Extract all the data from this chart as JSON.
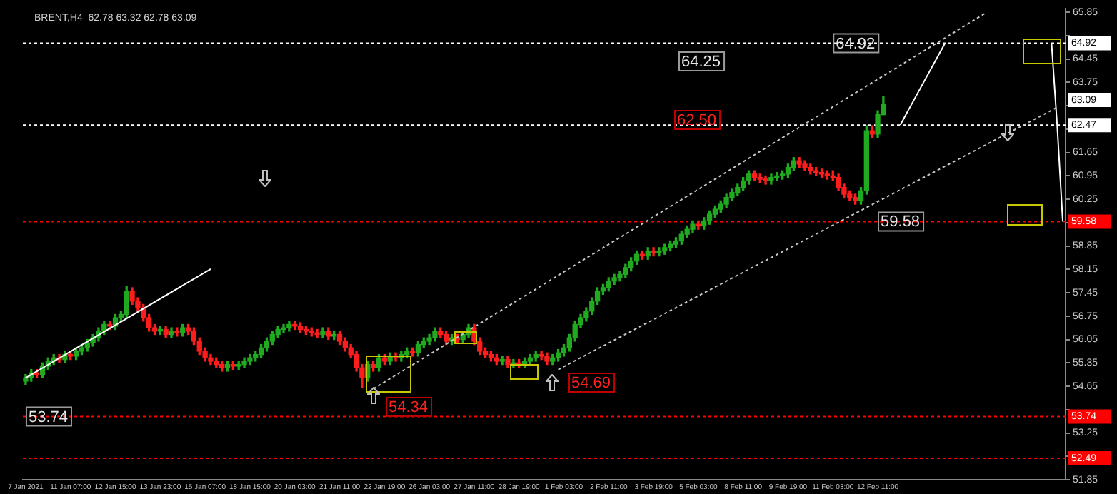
{
  "chart_data": {
    "type": "candlestick",
    "title": "BRENT,H4  62.78 63.32 62.78 63.09",
    "categories": [
      "7 Jan 2021",
      null,
      null,
      null,
      null,
      null,
      null,
      null,
      "11 Jan 07:00",
      null,
      null,
      null,
      null,
      null,
      null,
      null,
      "12 Jan 15:00",
      null,
      null,
      null,
      null,
      null,
      null,
      null,
      "13 Jan 23:00",
      null,
      null,
      null,
      null,
      null,
      null,
      null,
      "15 Jan 07:00",
      null,
      null,
      null,
      null,
      null,
      null,
      null,
      "18 Jan 15:00",
      null,
      null,
      null,
      null,
      null,
      null,
      null,
      "20 Jan 03:00",
      null,
      null,
      null,
      null,
      null,
      null,
      null,
      "21 Jan 11:00",
      null,
      null,
      null,
      null,
      null,
      null,
      null,
      "22 Jan 19:00",
      null,
      null,
      null,
      null,
      null,
      null,
      null,
      "26 Jan 03:00",
      null,
      null,
      null,
      null,
      null,
      null,
      null,
      "27 Jan 11:00",
      null,
      null,
      null,
      null,
      null,
      null,
      null,
      "28 Jan 19:00",
      null,
      null,
      null,
      null,
      null,
      null,
      null,
      "1 Feb 03:00",
      null,
      null,
      null,
      null,
      null,
      null,
      null,
      "2 Feb 11:00",
      null,
      null,
      null,
      null,
      null,
      null,
      null,
      "3 Feb 19:00",
      null,
      null,
      null,
      null,
      null,
      null,
      null,
      "5 Feb 03:00",
      null,
      null,
      null,
      null,
      null,
      null,
      null,
      "8 Feb 11:00",
      null,
      null,
      null,
      null,
      null,
      null,
      null,
      "9 Feb 19:00",
      null,
      null,
      null,
      null,
      null,
      null,
      null,
      "11 Feb 03:00",
      null,
      null,
      null,
      null,
      null,
      null,
      null,
      "12 Feb 11:00",
      null,
      null,
      null,
      null,
      null,
      null,
      null,
      null,
      null,
      null,
      null,
      null,
      null,
      null,
      null,
      null,
      null,
      null,
      null,
      null,
      null,
      null,
      null,
      null,
      null,
      null,
      null,
      null,
      null,
      null,
      null,
      null,
      null
    ],
    "ohlc": [
      [
        54.8,
        55.0,
        54.7,
        54.9
      ],
      [
        54.9,
        55.15,
        54.8,
        55.05
      ],
      [
        55.05,
        55.15,
        54.9,
        55.0
      ],
      [
        55.0,
        55.35,
        54.9,
        55.25
      ],
      [
        55.25,
        55.5,
        55.15,
        55.4
      ],
      [
        55.4,
        55.6,
        55.3,
        55.5
      ],
      [
        55.5,
        55.6,
        55.35,
        55.45
      ],
      [
        55.45,
        55.7,
        55.35,
        55.6
      ],
      [
        55.6,
        55.7,
        55.45,
        55.55
      ],
      [
        55.55,
        55.8,
        55.45,
        55.7
      ],
      [
        55.7,
        55.9,
        55.6,
        55.8
      ],
      [
        55.8,
        56.05,
        55.7,
        55.95
      ],
      [
        55.95,
        56.2,
        55.85,
        56.1
      ],
      [
        56.1,
        56.4,
        56.0,
        56.3
      ],
      [
        56.3,
        56.6,
        56.2,
        56.5
      ],
      [
        56.5,
        56.6,
        56.35,
        56.45
      ],
      [
        56.45,
        56.8,
        56.35,
        56.7
      ],
      [
        56.7,
        56.9,
        56.6,
        56.8
      ],
      [
        56.8,
        57.65,
        56.7,
        57.5
      ],
      [
        57.5,
        57.6,
        57.1,
        57.2
      ],
      [
        57.2,
        57.3,
        56.9,
        57.0
      ],
      [
        57.0,
        57.1,
        56.6,
        56.7
      ],
      [
        56.7,
        56.8,
        56.3,
        56.4
      ],
      [
        56.4,
        56.5,
        56.2,
        56.3
      ],
      [
        56.3,
        56.45,
        56.2,
        56.35
      ],
      [
        56.35,
        56.45,
        56.1,
        56.2
      ],
      [
        56.2,
        56.4,
        56.1,
        56.3
      ],
      [
        56.3,
        56.4,
        56.15,
        56.25
      ],
      [
        56.25,
        56.5,
        56.15,
        56.4
      ],
      [
        56.4,
        56.5,
        56.2,
        56.3
      ],
      [
        56.3,
        56.4,
        55.9,
        56.0
      ],
      [
        56.0,
        56.1,
        55.6,
        55.7
      ],
      [
        55.7,
        55.8,
        55.4,
        55.5
      ],
      [
        55.5,
        55.6,
        55.3,
        55.4
      ],
      [
        55.4,
        55.5,
        55.2,
        55.3
      ],
      [
        55.3,
        55.4,
        55.1,
        55.2
      ],
      [
        55.2,
        55.4,
        55.1,
        55.3
      ],
      [
        55.3,
        55.4,
        55.15,
        55.25
      ],
      [
        55.25,
        55.4,
        55.15,
        55.3
      ],
      [
        55.3,
        55.5,
        55.2,
        55.4
      ],
      [
        55.4,
        55.6,
        55.3,
        55.5
      ],
      [
        55.5,
        55.7,
        55.4,
        55.6
      ],
      [
        55.6,
        55.9,
        55.5,
        55.8
      ],
      [
        55.8,
        56.1,
        55.7,
        56.0
      ],
      [
        56.0,
        56.3,
        55.9,
        56.2
      ],
      [
        56.2,
        56.45,
        56.1,
        56.35
      ],
      [
        56.35,
        56.5,
        56.25,
        56.4
      ],
      [
        56.4,
        56.6,
        56.3,
        56.5
      ],
      [
        56.5,
        56.6,
        56.35,
        56.45
      ],
      [
        56.45,
        56.55,
        56.25,
        56.35
      ],
      [
        56.35,
        56.45,
        56.2,
        56.3
      ],
      [
        56.3,
        56.4,
        56.15,
        56.25
      ],
      [
        56.25,
        56.35,
        56.1,
        56.2
      ],
      [
        56.2,
        56.4,
        56.1,
        56.3
      ],
      [
        56.3,
        56.4,
        56.05,
        56.15
      ],
      [
        56.15,
        56.3,
        56.05,
        56.2
      ],
      [
        56.2,
        56.3,
        55.9,
        56.0
      ],
      [
        56.0,
        56.1,
        55.7,
        55.8
      ],
      [
        55.8,
        55.9,
        55.5,
        55.6
      ],
      [
        55.6,
        55.7,
        55.1,
        55.2
      ],
      [
        55.2,
        55.3,
        54.6,
        54.9
      ],
      [
        54.9,
        55.4,
        54.8,
        55.3
      ],
      [
        55.3,
        55.4,
        55.1,
        55.2
      ],
      [
        55.2,
        55.6,
        55.1,
        55.5
      ],
      [
        55.5,
        55.6,
        55.3,
        55.4
      ],
      [
        55.4,
        55.65,
        55.3,
        55.55
      ],
      [
        55.55,
        55.65,
        55.4,
        55.5
      ],
      [
        55.5,
        55.7,
        55.4,
        55.6
      ],
      [
        55.6,
        55.8,
        55.5,
        55.7
      ],
      [
        55.7,
        55.8,
        55.55,
        55.65
      ],
      [
        55.65,
        56.0,
        55.55,
        55.9
      ],
      [
        55.9,
        56.1,
        55.8,
        56.0
      ],
      [
        56.0,
        56.2,
        55.9,
        56.1
      ],
      [
        56.1,
        56.4,
        56.0,
        56.3
      ],
      [
        56.3,
        56.4,
        56.1,
        56.2
      ],
      [
        56.2,
        56.3,
        55.9,
        56.0
      ],
      [
        56.0,
        56.2,
        55.9,
        56.1
      ],
      [
        56.1,
        56.2,
        55.95,
        56.05
      ],
      [
        56.05,
        56.3,
        55.95,
        56.2
      ],
      [
        56.2,
        56.5,
        56.1,
        56.4
      ],
      [
        56.4,
        56.5,
        55.9,
        56.0
      ],
      [
        56.0,
        56.1,
        55.6,
        55.7
      ],
      [
        55.7,
        55.8,
        55.5,
        55.6
      ],
      [
        55.6,
        55.7,
        55.4,
        55.5
      ],
      [
        55.5,
        55.6,
        55.3,
        55.4
      ],
      [
        55.4,
        55.55,
        55.3,
        55.45
      ],
      [
        55.45,
        55.55,
        55.2,
        55.3
      ],
      [
        55.3,
        55.45,
        55.2,
        55.35
      ],
      [
        55.35,
        55.45,
        55.2,
        55.3
      ],
      [
        55.3,
        55.5,
        55.2,
        55.4
      ],
      [
        55.4,
        55.6,
        55.3,
        55.5
      ],
      [
        55.5,
        55.7,
        55.4,
        55.6
      ],
      [
        55.6,
        55.7,
        55.45,
        55.55
      ],
      [
        55.55,
        55.65,
        55.3,
        55.4
      ],
      [
        55.4,
        55.6,
        55.3,
        55.5
      ],
      [
        55.5,
        55.75,
        55.4,
        55.65
      ],
      [
        55.65,
        55.9,
        55.55,
        55.8
      ],
      [
        55.8,
        56.2,
        55.7,
        56.1
      ],
      [
        56.1,
        56.6,
        56.0,
        56.5
      ],
      [
        56.5,
        56.8,
        56.4,
        56.7
      ],
      [
        56.7,
        57.0,
        56.6,
        56.9
      ],
      [
        56.9,
        57.3,
        56.8,
        57.2
      ],
      [
        57.2,
        57.6,
        57.1,
        57.5
      ],
      [
        57.5,
        57.7,
        57.4,
        57.6
      ],
      [
        57.6,
        57.9,
        57.5,
        57.8
      ],
      [
        57.8,
        58.0,
        57.7,
        57.9
      ],
      [
        57.9,
        58.1,
        57.8,
        58.0
      ],
      [
        58.0,
        58.3,
        57.9,
        58.2
      ],
      [
        58.2,
        58.5,
        58.1,
        58.4
      ],
      [
        58.4,
        58.7,
        58.3,
        58.6
      ],
      [
        58.6,
        58.7,
        58.45,
        58.55
      ],
      [
        58.55,
        58.8,
        58.45,
        58.7
      ],
      [
        58.7,
        58.8,
        58.55,
        58.65
      ],
      [
        58.65,
        58.8,
        58.55,
        58.7
      ],
      [
        58.7,
        58.9,
        58.6,
        58.8
      ],
      [
        58.8,
        59.0,
        58.7,
        58.9
      ],
      [
        58.9,
        59.1,
        58.8,
        59.0
      ],
      [
        59.0,
        59.3,
        58.9,
        59.2
      ],
      [
        59.2,
        59.45,
        59.1,
        59.35
      ],
      [
        59.35,
        59.6,
        59.25,
        59.5
      ],
      [
        59.5,
        59.6,
        59.35,
        59.45
      ],
      [
        59.45,
        59.7,
        59.35,
        59.6
      ],
      [
        59.6,
        59.9,
        59.5,
        59.8
      ],
      [
        59.8,
        60.05,
        59.7,
        59.95
      ],
      [
        59.95,
        60.2,
        59.85,
        60.1
      ],
      [
        60.1,
        60.4,
        60.0,
        60.3
      ],
      [
        60.3,
        60.55,
        60.2,
        60.45
      ],
      [
        60.45,
        60.7,
        60.35,
        60.6
      ],
      [
        60.6,
        60.9,
        60.5,
        60.8
      ],
      [
        60.8,
        61.1,
        60.7,
        61.0
      ],
      [
        61.0,
        61.1,
        60.8,
        60.9
      ],
      [
        60.9,
        61.0,
        60.75,
        60.85
      ],
      [
        60.85,
        60.95,
        60.7,
        60.8
      ],
      [
        60.8,
        61.0,
        60.7,
        60.9
      ],
      [
        60.9,
        61.05,
        60.8,
        60.95
      ],
      [
        60.95,
        61.1,
        60.85,
        61.0
      ],
      [
        61.0,
        61.3,
        60.9,
        61.2
      ],
      [
        61.2,
        61.5,
        61.1,
        61.4
      ],
      [
        61.4,
        61.5,
        61.2,
        61.3
      ],
      [
        61.3,
        61.4,
        61.1,
        61.2
      ],
      [
        61.2,
        61.3,
        61.0,
        61.1
      ],
      [
        61.1,
        61.2,
        60.95,
        61.05
      ],
      [
        61.05,
        61.15,
        60.9,
        61.0
      ],
      [
        61.0,
        61.1,
        60.85,
        60.95
      ],
      [
        60.95,
        61.1,
        60.8,
        60.9
      ],
      [
        60.9,
        61.0,
        60.5,
        60.6
      ],
      [
        60.6,
        60.7,
        60.3,
        60.4
      ],
      [
        60.4,
        60.5,
        60.2,
        60.3
      ],
      [
        60.3,
        60.4,
        60.1,
        60.2
      ],
      [
        60.2,
        60.6,
        60.1,
        60.5
      ],
      [
        60.5,
        62.45,
        60.4,
        62.3
      ],
      [
        62.3,
        62.45,
        62.1,
        62.2
      ],
      [
        62.2,
        62.9,
        62.1,
        62.78
      ],
      [
        62.78,
        63.32,
        62.78,
        63.09
      ],
      null,
      null,
      null,
      null,
      null,
      null,
      null,
      null,
      null,
      null,
      null,
      null,
      null,
      null,
      null,
      null,
      null,
      null,
      null,
      null,
      null,
      null,
      null,
      null,
      null,
      null,
      null,
      null,
      null,
      null,
      null,
      null
    ],
    "series": [
      {
        "type": "line",
        "color": "#ffffff",
        "line_style": "solid",
        "values": [
          54.9,
          null,
          null,
          null,
          null,
          null,
          null,
          null,
          null,
          null,
          null,
          null,
          null,
          null,
          null,
          null,
          null,
          null,
          null,
          null,
          null,
          null,
          null,
          null,
          null,
          null,
          null,
          null,
          null,
          null,
          null,
          null,
          null,
          58.16,
          null,
          null,
          null,
          null,
          null,
          null,
          null,
          null,
          null,
          null,
          null,
          null,
          null,
          null,
          null,
          null,
          null,
          null,
          null,
          null,
          null,
          null,
          null,
          null,
          null,
          null,
          null,
          null,
          null,
          null,
          null,
          null,
          null,
          null,
          null,
          null,
          null,
          null,
          null,
          null,
          null,
          null,
          null,
          null,
          null,
          null,
          null,
          null,
          null,
          null,
          null,
          null,
          null,
          null,
          null,
          null,
          null,
          null,
          null,
          null,
          null,
          null,
          null,
          null,
          null,
          null,
          null,
          null,
          null,
          null,
          null,
          null,
          null,
          null,
          null,
          null,
          null,
          null,
          null,
          null,
          null,
          null,
          null,
          null,
          null,
          null,
          null,
          null,
          null,
          null,
          null,
          null,
          null,
          null,
          null,
          null,
          null,
          null,
          null,
          null,
          null,
          null,
          null,
          null,
          null,
          null,
          null,
          null,
          null,
          null,
          null,
          null,
          null,
          null,
          null,
          null,
          null,
          null,
          null,
          null,
          null,
          null,
          null,
          null,
          null,
          null,
          null,
          null,
          null,
          null,
          null,
          null,
          null,
          null,
          null,
          null,
          null,
          null,
          null,
          null,
          null,
          null,
          null,
          null,
          null,
          null,
          null,
          null,
          null,
          null,
          null,
          null
        ]
      },
      {
        "type": "line",
        "color": "#c8c8c8",
        "line_style": "dotted",
        "values": [
          null,
          null,
          null,
          null,
          null,
          null,
          null,
          null,
          null,
          null,
          null,
          null,
          null,
          null,
          null,
          null,
          null,
          null,
          null,
          null,
          null,
          null,
          null,
          null,
          null,
          null,
          null,
          null,
          null,
          null,
          null,
          null,
          null,
          null,
          null,
          null,
          null,
          null,
          null,
          null,
          null,
          null,
          null,
          null,
          null,
          null,
          null,
          null,
          null,
          null,
          null,
          null,
          null,
          null,
          null,
          null,
          null,
          null,
          null,
          null,
          null,
          null,
          54.57,
          null,
          null,
          null,
          null,
          null,
          null,
          null,
          null,
          null,
          null,
          null,
          null,
          null,
          null,
          null,
          null,
          null,
          null,
          null,
          null,
          null,
          null,
          null,
          null,
          null,
          null,
          null,
          null,
          null,
          null,
          null,
          null,
          null,
          null,
          null,
          null,
          null,
          null,
          null,
          null,
          null,
          null,
          null,
          null,
          null,
          null,
          null,
          null,
          null,
          null,
          null,
          null,
          null,
          null,
          null,
          null,
          null,
          null,
          null,
          null,
          null,
          null,
          null,
          null,
          null,
          null,
          null,
          null,
          null,
          null,
          null,
          null,
          null,
          null,
          null,
          null,
          null,
          null,
          null,
          null,
          null,
          null,
          null,
          null,
          null,
          null,
          null,
          null,
          null,
          null,
          null,
          null,
          null,
          null,
          null,
          null,
          null,
          null,
          null,
          null,
          null,
          null,
          null,
          null,
          null,
          null,
          null,
          null,
          65.8,
          null,
          null,
          null,
          null,
          null,
          null,
          null,
          null,
          null,
          null,
          null,
          null,
          null,
          null
        ]
      },
      {
        "type": "line",
        "color": "#c8c8c8",
        "line_style": "dotted",
        "values": [
          null,
          null,
          null,
          null,
          null,
          null,
          null,
          null,
          null,
          null,
          null,
          null,
          null,
          null,
          null,
          null,
          null,
          null,
          null,
          null,
          null,
          null,
          null,
          null,
          null,
          null,
          null,
          null,
          null,
          null,
          null,
          null,
          null,
          null,
          null,
          null,
          null,
          null,
          null,
          null,
          null,
          null,
          null,
          null,
          null,
          null,
          null,
          null,
          null,
          null,
          null,
          null,
          null,
          null,
          null,
          null,
          null,
          null,
          null,
          null,
          null,
          null,
          null,
          null,
          null,
          null,
          null,
          null,
          null,
          null,
          null,
          null,
          null,
          null,
          null,
          null,
          null,
          null,
          null,
          null,
          null,
          null,
          null,
          null,
          null,
          null,
          null,
          null,
          null,
          null,
          null,
          null,
          null,
          null,
          null,
          55.15,
          null,
          null,
          null,
          null,
          null,
          null,
          null,
          null,
          null,
          null,
          null,
          null,
          null,
          null,
          null,
          null,
          null,
          null,
          null,
          null,
          null,
          null,
          null,
          null,
          null,
          null,
          null,
          null,
          null,
          null,
          null,
          null,
          null,
          null,
          null,
          null,
          null,
          null,
          null,
          null,
          null,
          null,
          null,
          null,
          null,
          null,
          null,
          null,
          null,
          null,
          null,
          null,
          null,
          null,
          null,
          null,
          null,
          null,
          null,
          null,
          null,
          null,
          null,
          null,
          null,
          null,
          null,
          null,
          null,
          null,
          null,
          null,
          null,
          null,
          null,
          null,
          null,
          null,
          null,
          null,
          null,
          null,
          null,
          null,
          null,
          null,
          null,
          null,
          63.0,
          null
        ]
      },
      {
        "type": "line",
        "color": "#ffffff",
        "line_style": "solid",
        "values": [
          null,
          null,
          null,
          null,
          null,
          null,
          null,
          null,
          null,
          null,
          null,
          null,
          null,
          null,
          null,
          null,
          null,
          null,
          null,
          null,
          null,
          null,
          null,
          null,
          null,
          null,
          null,
          null,
          null,
          null,
          null,
          null,
          null,
          null,
          null,
          null,
          null,
          null,
          null,
          null,
          null,
          null,
          null,
          null,
          null,
          null,
          null,
          null,
          null,
          null,
          null,
          null,
          null,
          null,
          null,
          null,
          null,
          null,
          null,
          null,
          null,
          null,
          null,
          null,
          null,
          null,
          null,
          null,
          null,
          null,
          null,
          null,
          null,
          null,
          null,
          null,
          null,
          null,
          null,
          null,
          null,
          null,
          null,
          null,
          null,
          null,
          null,
          null,
          null,
          null,
          null,
          null,
          null,
          null,
          null,
          null,
          null,
          null,
          null,
          null,
          null,
          null,
          null,
          null,
          null,
          null,
          null,
          null,
          null,
          null,
          null,
          null,
          null,
          null,
          null,
          null,
          null,
          null,
          null,
          null,
          null,
          null,
          null,
          null,
          null,
          null,
          null,
          null,
          null,
          null,
          null,
          null,
          null,
          null,
          null,
          null,
          null,
          null,
          null,
          null,
          null,
          null,
          null,
          null,
          null,
          null,
          null,
          null,
          null,
          null,
          null,
          null,
          null,
          null,
          null,
          null,
          62.47,
          null,
          null,
          null,
          null,
          null,
          null,
          null,
          64.92,
          null,
          null,
          null,
          null,
          null,
          null,
          null,
          null,
          null,
          null,
          null,
          null,
          null,
          null,
          null,
          null,
          null,
          null,
          null,
          null,
          null
        ]
      },
      {
        "type": "line",
        "color": "#ffffff",
        "line_style": "solid",
        "values": [
          null,
          null,
          null,
          null,
          null,
          null,
          null,
          null,
          null,
          null,
          null,
          null,
          null,
          null,
          null,
          null,
          null,
          null,
          null,
          null,
          null,
          null,
          null,
          null,
          null,
          null,
          null,
          null,
          null,
          null,
          null,
          null,
          null,
          null,
          null,
          null,
          null,
          null,
          null,
          null,
          null,
          null,
          null,
          null,
          null,
          null,
          null,
          null,
          null,
          null,
          null,
          null,
          null,
          null,
          null,
          null,
          null,
          null,
          null,
          null,
          null,
          null,
          null,
          null,
          null,
          null,
          null,
          null,
          null,
          null,
          null,
          null,
          null,
          null,
          null,
          null,
          null,
          null,
          null,
          null,
          null,
          null,
          null,
          null,
          null,
          null,
          null,
          null,
          null,
          null,
          null,
          null,
          null,
          null,
          null,
          null,
          null,
          null,
          null,
          null,
          null,
          null,
          null,
          null,
          null,
          null,
          null,
          null,
          null,
          null,
          null,
          null,
          null,
          null,
          null,
          null,
          null,
          null,
          null,
          null,
          null,
          null,
          null,
          null,
          null,
          null,
          null,
          null,
          null,
          null,
          null,
          null,
          null,
          null,
          null,
          null,
          null,
          null,
          null,
          null,
          null,
          null,
          null,
          null,
          null,
          null,
          null,
          null,
          null,
          null,
          null,
          null,
          null,
          null,
          null,
          null,
          null,
          null,
          null,
          null,
          null,
          null,
          null,
          null,
          null,
          null,
          null,
          null,
          null,
          null,
          null,
          null,
          null,
          null,
          null,
          null,
          null,
          null,
          null,
          null,
          null,
          null,
          null,
          64.92,
          62.47,
          59.58
        ]
      }
    ],
    "ylim": [
      51.85,
      65.95
    ],
    "yticks": [
      65.85,
      {
        "value": 65.15,
        "label": null
      },
      64.45,
      63.75,
      {
        "value": 63.05,
        "label": null
      },
      {
        "value": 62.35,
        "label": null
      },
      61.65,
      60.95,
      60.25,
      {
        "value": 59.55,
        "label": null
      },
      58.85,
      58.15,
      57.45,
      56.75,
      56.05,
      55.35,
      54.65,
      {
        "value": 53.95,
        "label": null
      },
      53.25,
      {
        "value": 52.55,
        "label": null
      },
      51.85
    ],
    "ref_lines": [
      {
        "axis": "y",
        "value": 64.92,
        "label": "64.92",
        "color": "#ffffff",
        "line_style": "dotted"
      },
      {
        "axis": "y",
        "value": 62.47,
        "label": "62.47",
        "color": "#ffffff",
        "line_style": "dotted"
      },
      {
        "axis": "y",
        "value": 59.58,
        "label": "59.58",
        "color": "#ff0000",
        "line_style": "dotted"
      },
      {
        "axis": "y",
        "value": 53.74,
        "label": "53.74",
        "color": "#ff0000",
        "line_style": "dotted"
      },
      {
        "axis": "y",
        "value": 52.49,
        "label": "52.49",
        "color": "#ff0000",
        "line_style": "dotted"
      }
    ],
    "annotations": [
      {
        "text": "64.92",
        "x": "11 Feb 03:00",
        "y": 64.92
      },
      {
        "text": "59.58",
        "x": "12 Feb 11:00",
        "y": 59.58
      },
      {
        "text": "53.74",
        "x": "7 Jan 2021",
        "y": 53.74
      },
      "63.09",
      "64.25",
      "62.50",
      "54.34",
      "54.69"
    ]
  }
}
